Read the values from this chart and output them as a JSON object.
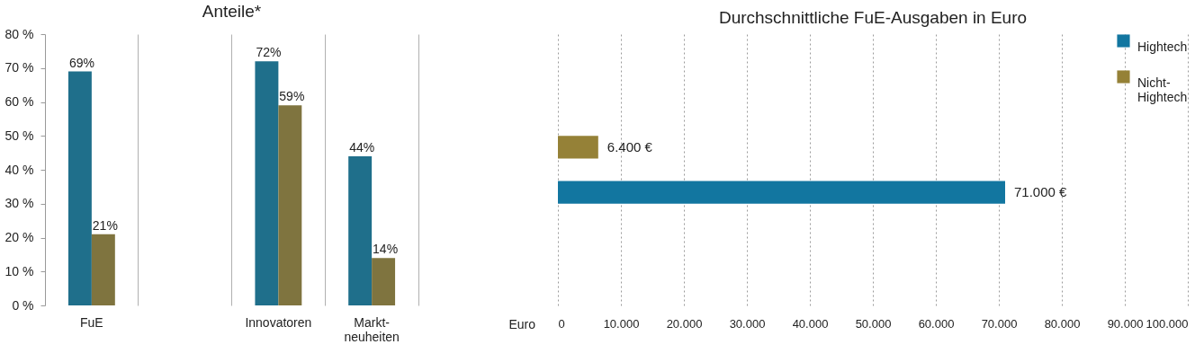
{
  "chart_data": [
    {
      "type": "bar",
      "title": "Anteile*",
      "categories": [
        "FuE",
        null,
        "Innovatoren",
        "Markt-\nneuheiten"
      ],
      "series": [
        {
          "color": "#1f6f8b",
          "values": [
            69,
            null,
            72,
            44
          ],
          "value_labels": [
            "69%",
            null,
            "72%",
            "44%"
          ]
        },
        {
          "color": "#7f743f",
          "values": [
            21,
            null,
            59,
            14
          ],
          "value_labels": [
            "21%",
            null,
            "59%",
            "14%"
          ]
        }
      ],
      "ylim": [
        0,
        80
      ],
      "yticks": [
        {
          "value": 0,
          "label": "0 %"
        },
        {
          "value": 10,
          "label": "10 %"
        },
        {
          "value": 20,
          "label": "20 %"
        },
        {
          "value": 30,
          "label": "30 %"
        },
        {
          "value": 40,
          "label": "40 %"
        },
        {
          "value": 50,
          "label": "50 %"
        },
        {
          "value": 60,
          "label": "60 %"
        },
        {
          "value": 70,
          "label": "70 %"
        },
        {
          "value": 80,
          "label": "80 %"
        }
      ],
      "grid": "x",
      "legend": false
    },
    {
      "type": "bar",
      "title": "Durchschnittliche FuE-Ausgaben in Euro",
      "orientation": "horizontal",
      "categories": [
        null
      ],
      "xlabel": "Euro",
      "series": [
        {
          "name": "Hightech",
          "color": "#1276a0",
          "values": [
            71000
          ],
          "value_labels": [
            "71.000 €"
          ]
        },
        {
          "name": "Nicht-\nHightech",
          "color": "#958137",
          "values": [
            6400
          ],
          "value_labels": [
            "6.400 €"
          ]
        }
      ],
      "xlim": [
        0,
        100000
      ],
      "xticks": [
        0,
        {
          "value": 10000,
          "label": "10.000"
        },
        {
          "value": 20000,
          "label": "20.000"
        },
        {
          "value": 30000,
          "label": "30.000"
        },
        {
          "value": 40000,
          "label": "40.000"
        },
        {
          "value": 50000,
          "label": "50.000"
        },
        {
          "value": 60000,
          "label": "60.000"
        },
        {
          "value": 70000,
          "label": "70.000"
        },
        {
          "value": 80000,
          "label": "80.000"
        },
        {
          "value": 90000,
          "label": "90.000"
        },
        {
          "value": 100000,
          "label": "100.000"
        }
      ],
      "grid": "x",
      "legend": "top right"
    }
  ]
}
